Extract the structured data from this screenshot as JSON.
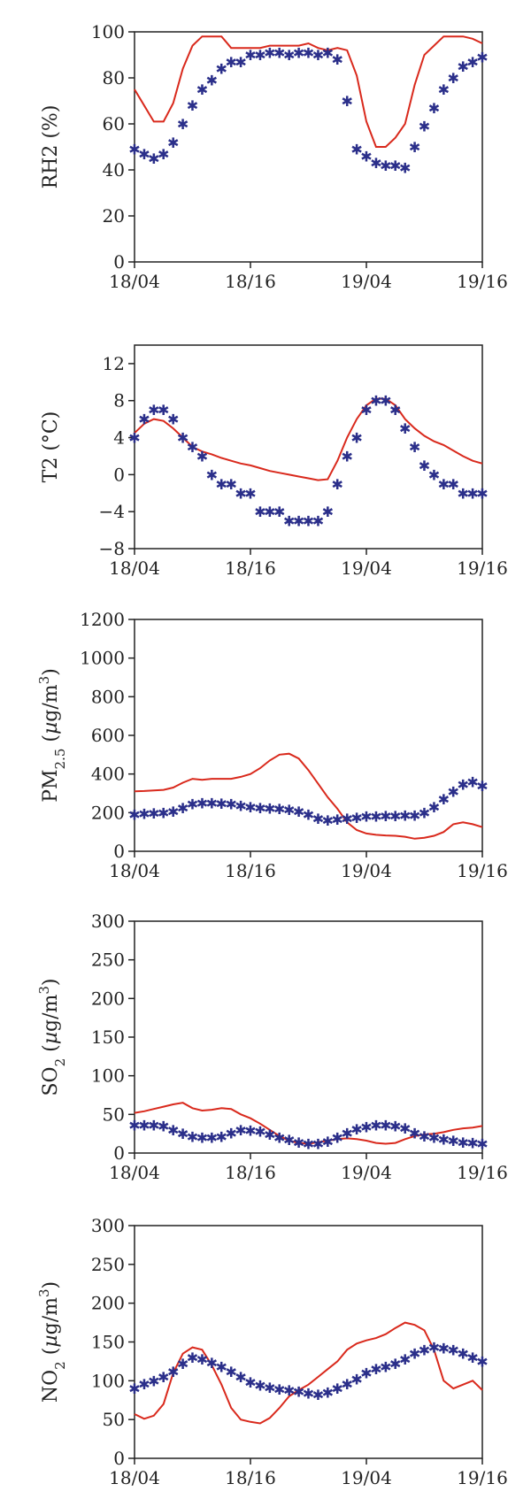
{
  "chart_data": [
    {
      "type": "line",
      "ylabel": "RH2 (%)",
      "ylabel_parts": [
        {
          "t": "RH2 (%)",
          "s": "n"
        }
      ],
      "xticks": [
        "18/04",
        "18/16",
        "19/04",
        "19/16"
      ],
      "xlim": [
        0,
        36
      ],
      "ylim": [
        0,
        100
      ],
      "yticks": [
        0,
        20,
        40,
        60,
        80,
        100
      ],
      "yticklabels": [
        "0",
        "20",
        "40",
        "60",
        "80",
        "100"
      ],
      "series": [
        {
          "kind": "line",
          "color": "#d9291c",
          "x": [
            0,
            1,
            2,
            3,
            4,
            5,
            6,
            7,
            8,
            9,
            10,
            11,
            12,
            13,
            14,
            15,
            16,
            17,
            18,
            19,
            20,
            21,
            22,
            23,
            24,
            25,
            26,
            27,
            28,
            29,
            30,
            31,
            32,
            33,
            34,
            35,
            36
          ],
          "y": [
            75,
            68,
            61,
            61,
            69,
            84,
            94,
            98,
            98,
            98,
            93,
            93,
            93,
            93,
            94,
            94,
            94,
            94,
            95,
            93,
            92,
            93,
            92,
            81,
            61,
            50,
            50,
            54,
            60,
            77,
            90,
            94,
            98,
            98,
            98,
            97,
            95
          ]
        },
        {
          "kind": "markers",
          "color": "#2b2f8a",
          "x": [
            0,
            1,
            2,
            3,
            4,
            5,
            6,
            7,
            8,
            9,
            10,
            11,
            12,
            13,
            14,
            15,
            16,
            17,
            18,
            19,
            20,
            21,
            22,
            23,
            24,
            25,
            26,
            27,
            28,
            29,
            30,
            31,
            32,
            33,
            34,
            35,
            36
          ],
          "y": [
            49,
            47,
            45,
            47,
            52,
            60,
            68,
            75,
            79,
            84,
            87,
            87,
            90,
            90,
            91,
            91,
            90,
            91,
            91,
            90,
            91,
            88,
            70,
            49,
            46,
            43,
            42,
            42,
            41,
            50,
            59,
            67,
            75,
            80,
            85,
            87,
            89
          ]
        }
      ]
    },
    {
      "type": "line",
      "ylabel": "T2 (°C)",
      "ylabel_parts": [
        {
          "t": "T2 (°C)",
          "s": "n"
        }
      ],
      "xticks": [
        "18/04",
        "18/16",
        "19/04",
        "19/16"
      ],
      "xlim": [
        0,
        36
      ],
      "ylim": [
        -8,
        14
      ],
      "yticks": [
        -8,
        -4,
        0,
        4,
        8,
        12
      ],
      "yticklabels": [
        "−8",
        "−4",
        "0",
        "4",
        "8",
        "12"
      ],
      "series": [
        {
          "kind": "line",
          "color": "#d9291c",
          "x": [
            0,
            1,
            2,
            3,
            4,
            5,
            6,
            7,
            8,
            9,
            10,
            11,
            12,
            13,
            14,
            15,
            16,
            17,
            18,
            19,
            20,
            21,
            22,
            23,
            24,
            25,
            26,
            27,
            28,
            29,
            30,
            31,
            32,
            33,
            34,
            35,
            36
          ],
          "y": [
            4.5,
            5.5,
            6,
            5.8,
            5,
            4,
            3,
            2.5,
            2.2,
            1.8,
            1.5,
            1.2,
            1,
            0.7,
            0.4,
            0.2,
            0,
            -0.2,
            -0.4,
            -0.6,
            -0.5,
            1.5,
            4,
            6,
            7.5,
            8.2,
            8.2,
            7.5,
            6,
            5,
            4.2,
            3.6,
            3.2,
            2.6,
            2,
            1.5,
            1.2
          ]
        },
        {
          "kind": "markers",
          "color": "#2b2f8a",
          "x": [
            0,
            1,
            2,
            3,
            4,
            5,
            6,
            7,
            8,
            9,
            10,
            11,
            12,
            13,
            14,
            15,
            16,
            17,
            18,
            19,
            20,
            21,
            22,
            23,
            24,
            25,
            26,
            27,
            28,
            29,
            30,
            31,
            32,
            33,
            34,
            35,
            36
          ],
          "y": [
            4,
            6,
            7,
            7,
            6,
            4,
            3,
            2,
            0,
            -1,
            -1,
            -2,
            -2,
            -4,
            -4,
            -4,
            -5,
            -5,
            -5,
            -5,
            -4,
            -1,
            2,
            4,
            7,
            8,
            8,
            7,
            5,
            3,
            1,
            0,
            -1,
            -1,
            -2,
            -2,
            -2
          ]
        }
      ]
    },
    {
      "type": "line",
      "ylabel": "PM2.5 (µg/m3)",
      "ylabel_parts": [
        {
          "t": "PM",
          "s": "n"
        },
        {
          "t": "2.5",
          "s": "sub"
        },
        {
          "t": " (",
          "s": "n"
        },
        {
          "t": "µ",
          "s": "i"
        },
        {
          "t": "g/m",
          "s": "n"
        },
        {
          "t": "3",
          "s": "sup"
        },
        {
          "t": ")",
          "s": "n"
        }
      ],
      "xticks": [
        "18/04",
        "18/16",
        "19/04",
        "19/16"
      ],
      "xlim": [
        0,
        36
      ],
      "ylim": [
        0,
        1200
      ],
      "yticks": [
        0,
        200,
        400,
        600,
        800,
        1000,
        1200
      ],
      "yticklabels": [
        "0",
        "200",
        "400",
        "600",
        "800",
        "1000",
        "1200"
      ],
      "series": [
        {
          "kind": "line",
          "color": "#d9291c",
          "x": [
            0,
            1,
            2,
            3,
            4,
            5,
            6,
            7,
            8,
            9,
            10,
            11,
            12,
            13,
            14,
            15,
            16,
            17,
            18,
            19,
            20,
            21,
            22,
            23,
            24,
            25,
            26,
            27,
            28,
            29,
            30,
            31,
            32,
            33,
            34,
            35,
            36
          ],
          "y": [
            310,
            312,
            315,
            318,
            330,
            355,
            375,
            370,
            375,
            375,
            375,
            385,
            400,
            430,
            470,
            500,
            505,
            480,
            420,
            350,
            280,
            220,
            150,
            110,
            92,
            85,
            82,
            80,
            75,
            65,
            70,
            80,
            100,
            140,
            150,
            140,
            125
          ]
        },
        {
          "kind": "markers",
          "color": "#2b2f8a",
          "x": [
            0,
            1,
            2,
            3,
            4,
            5,
            6,
            7,
            8,
            9,
            10,
            11,
            12,
            13,
            14,
            15,
            16,
            17,
            18,
            19,
            20,
            21,
            22,
            23,
            24,
            25,
            26,
            27,
            28,
            29,
            30,
            31,
            32,
            33,
            34,
            35,
            36
          ],
          "y": [
            190,
            195,
            198,
            200,
            205,
            225,
            245,
            250,
            250,
            248,
            245,
            235,
            228,
            225,
            222,
            220,
            215,
            205,
            190,
            170,
            160,
            165,
            170,
            175,
            180,
            182,
            183,
            183,
            185,
            185,
            200,
            230,
            270,
            310,
            345,
            360,
            340
          ]
        }
      ]
    },
    {
      "type": "line",
      "ylabel": "SO2 (µg/m3)",
      "ylabel_parts": [
        {
          "t": "SO",
          "s": "n"
        },
        {
          "t": "2",
          "s": "sub"
        },
        {
          "t": " (",
          "s": "n"
        },
        {
          "t": "µ",
          "s": "i"
        },
        {
          "t": "g/m",
          "s": "n"
        },
        {
          "t": "3",
          "s": "sup"
        },
        {
          "t": ")",
          "s": "n"
        }
      ],
      "xticks": [
        "18/04",
        "18/16",
        "19/04",
        "19/16"
      ],
      "xlim": [
        0,
        36
      ],
      "ylim": [
        0,
        300
      ],
      "yticks": [
        0,
        50,
        100,
        150,
        200,
        250,
        300
      ],
      "yticklabels": [
        "0",
        "50",
        "100",
        "150",
        "200",
        "250",
        "300"
      ],
      "series": [
        {
          "kind": "line",
          "color": "#d9291c",
          "x": [
            0,
            1,
            2,
            3,
            4,
            5,
            6,
            7,
            8,
            9,
            10,
            11,
            12,
            13,
            14,
            15,
            16,
            17,
            18,
            19,
            20,
            21,
            22,
            23,
            24,
            25,
            26,
            27,
            28,
            29,
            30,
            31,
            32,
            33,
            34,
            35,
            36
          ],
          "y": [
            52,
            54,
            57,
            60,
            63,
            65,
            58,
            55,
            56,
            58,
            57,
            50,
            45,
            38,
            30,
            22,
            16,
            13,
            12,
            14,
            16,
            18,
            19,
            18,
            16,
            13,
            12,
            13,
            18,
            22,
            24,
            25,
            27,
            30,
            32,
            33,
            35
          ]
        },
        {
          "kind": "markers",
          "color": "#2b2f8a",
          "x": [
            0,
            1,
            2,
            3,
            4,
            5,
            6,
            7,
            8,
            9,
            10,
            11,
            12,
            13,
            14,
            15,
            16,
            17,
            18,
            19,
            20,
            21,
            22,
            23,
            24,
            25,
            26,
            27,
            28,
            29,
            30,
            31,
            32,
            33,
            34,
            35,
            36
          ],
          "y": [
            36,
            36,
            36,
            35,
            30,
            25,
            21,
            20,
            20,
            21,
            26,
            30,
            29,
            28,
            24,
            20,
            17,
            14,
            12,
            12,
            15,
            20,
            26,
            31,
            34,
            36,
            36,
            35,
            32,
            26,
            22,
            20,
            18,
            16,
            14,
            13,
            12
          ]
        }
      ]
    },
    {
      "type": "line",
      "ylabel": "NO2 (µg/m3)",
      "ylabel_parts": [
        {
          "t": "NO",
          "s": "n"
        },
        {
          "t": "2",
          "s": "sub"
        },
        {
          "t": " (",
          "s": "n"
        },
        {
          "t": "µ",
          "s": "i"
        },
        {
          "t": "g/m",
          "s": "n"
        },
        {
          "t": "3",
          "s": "sup"
        },
        {
          "t": ")",
          "s": "n"
        }
      ],
      "xticks": [
        "18/04",
        "18/16",
        "19/04",
        "19/16"
      ],
      "xlim": [
        0,
        36
      ],
      "ylim": [
        0,
        300
      ],
      "yticks": [
        0,
        50,
        100,
        150,
        200,
        250,
        300
      ],
      "yticklabels": [
        "0",
        "50",
        "100",
        "150",
        "200",
        "250",
        "300"
      ],
      "series": [
        {
          "kind": "line",
          "color": "#d9291c",
          "x": [
            0,
            1,
            2,
            3,
            4,
            5,
            6,
            7,
            8,
            9,
            10,
            11,
            12,
            13,
            14,
            15,
            16,
            17,
            18,
            19,
            20,
            21,
            22,
            23,
            24,
            25,
            26,
            27,
            28,
            29,
            30,
            31,
            32,
            33,
            34,
            35,
            36
          ],
          "y": [
            57,
            51,
            55,
            70,
            110,
            135,
            143,
            140,
            120,
            95,
            65,
            50,
            47,
            45,
            52,
            65,
            80,
            88,
            95,
            105,
            115,
            125,
            140,
            148,
            152,
            155,
            160,
            168,
            175,
            172,
            165,
            140,
            100,
            90,
            95,
            100,
            88
          ]
        },
        {
          "kind": "markers",
          "color": "#2b2f8a",
          "x": [
            0,
            1,
            2,
            3,
            4,
            5,
            6,
            7,
            8,
            9,
            10,
            11,
            12,
            13,
            14,
            15,
            16,
            17,
            18,
            19,
            20,
            21,
            22,
            23,
            24,
            25,
            26,
            27,
            28,
            29,
            30,
            31,
            32,
            33,
            34,
            35,
            36
          ],
          "y": [
            90,
            96,
            100,
            105,
            112,
            122,
            130,
            128,
            123,
            118,
            112,
            105,
            98,
            94,
            91,
            89,
            88,
            86,
            84,
            82,
            85,
            90,
            96,
            102,
            110,
            115,
            118,
            122,
            128,
            135,
            140,
            143,
            142,
            140,
            135,
            130,
            125
          ]
        }
      ]
    }
  ]
}
